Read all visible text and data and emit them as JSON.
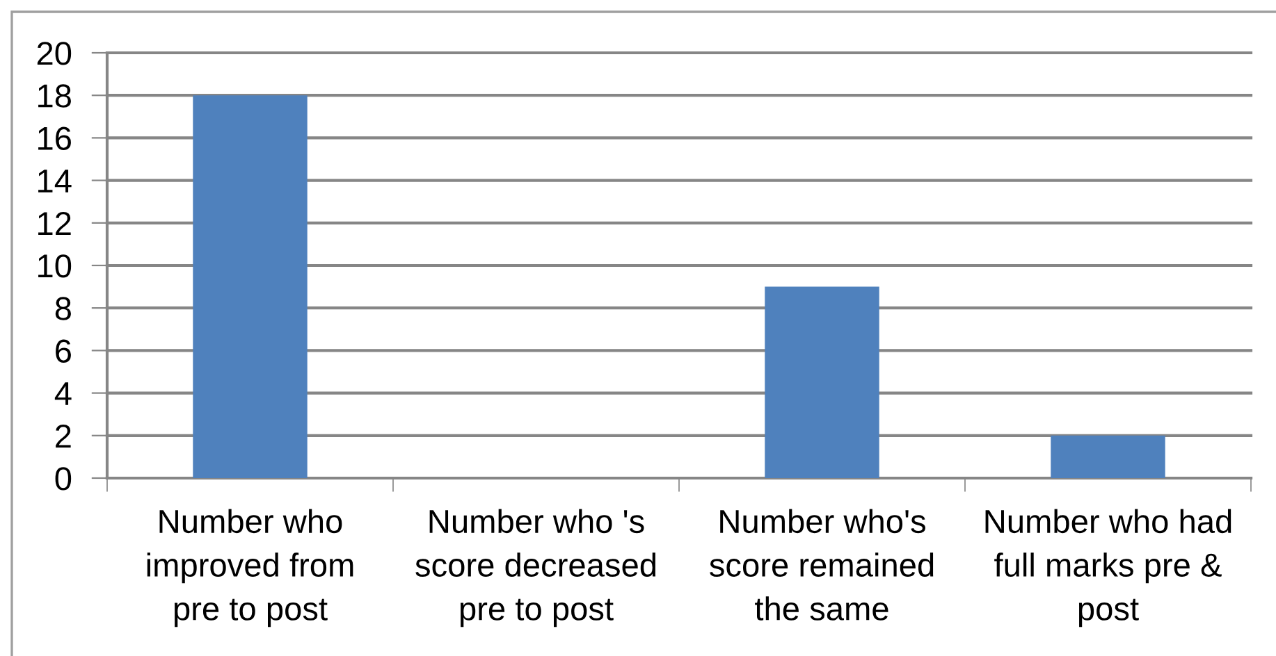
{
  "chart_data": {
    "type": "bar",
    "categories": [
      "Number who\nimproved from\npre to post",
      "Number who 's\nscore decreased\npre to post",
      "Number who's\nscore remained\nthe same",
      "Number who had\nfull marks pre &\npost"
    ],
    "values": [
      18,
      0,
      9,
      2
    ],
    "color": "#4f81bd",
    "ylim": [
      0,
      20
    ],
    "yticks": [
      0,
      2,
      4,
      6,
      8,
      10,
      12,
      14,
      16,
      18,
      20
    ],
    "grid": "y"
  }
}
